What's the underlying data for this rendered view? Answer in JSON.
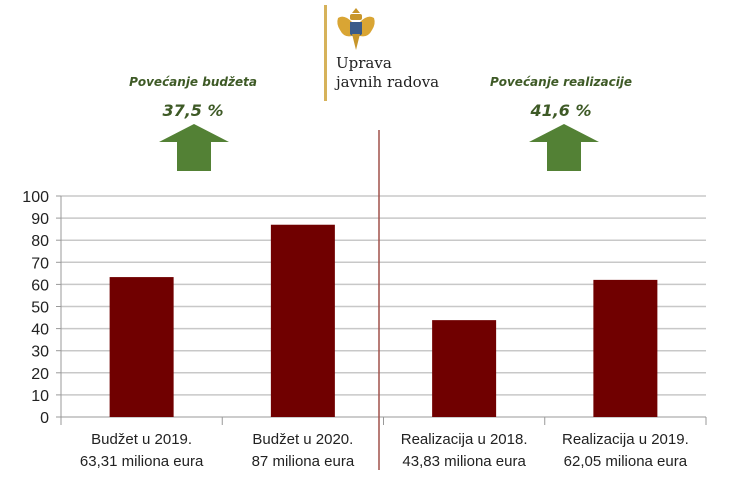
{
  "header": {
    "org_line1": "Uprava",
    "org_line2": "javnih radova",
    "logo": "montenegro-coat-of-arms"
  },
  "increases": [
    {
      "label": "Povećanje budžeta",
      "value": "37,5 %",
      "icon": "arrow-up-icon"
    },
    {
      "label": "Povećanje realizacije",
      "value": "41,6 %",
      "icon": "arrow-up-icon"
    }
  ],
  "colors": {
    "bar": "#700000",
    "arrow": "#538135",
    "text_green": "#3e5a26",
    "divider": "#a0504a",
    "gold": "#d6b25a"
  },
  "chart_data": {
    "type": "bar",
    "categories": [
      [
        "Budžet u 2019.",
        "63,31 miliona eura"
      ],
      [
        "Budžet u 2020.",
        "87 miliona eura"
      ],
      [
        "Realizacija u 2018.",
        "43,83 miliona eura"
      ],
      [
        "Realizacija u 2019.",
        "62,05 miliona eura"
      ]
    ],
    "values": [
      63.31,
      87,
      43.83,
      62.05
    ],
    "ylim": [
      0,
      100
    ],
    "yticks": [
      0,
      10,
      20,
      30,
      40,
      50,
      60,
      70,
      80,
      90,
      100
    ],
    "grid": true,
    "title": "",
    "xlabel": "",
    "ylabel": ""
  }
}
